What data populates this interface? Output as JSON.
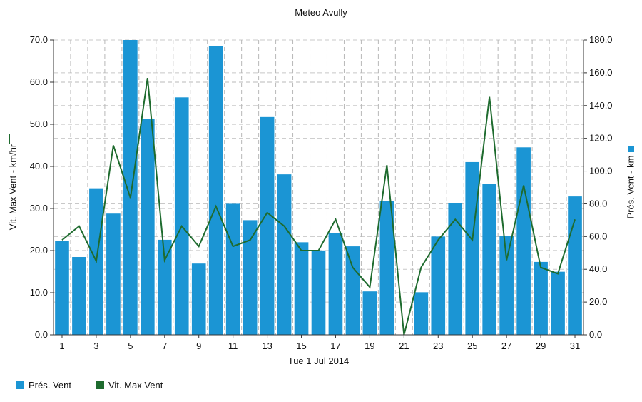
{
  "chart_data": {
    "type": "bar",
    "title": "Meteo  Avully",
    "xlabel": "Tue 1 Jul 2014",
    "ylabel_left": "Vit. Max Vent - km/hr",
    "ylabel_right": "Prés. Vent - km",
    "x": [
      1,
      2,
      3,
      4,
      5,
      6,
      7,
      8,
      9,
      10,
      11,
      12,
      13,
      14,
      15,
      16,
      17,
      18,
      19,
      20,
      21,
      22,
      23,
      24,
      25,
      26,
      27,
      28,
      29,
      30,
      31
    ],
    "x_tick_labels": [
      "1",
      "3",
      "5",
      "7",
      "9",
      "11",
      "13",
      "15",
      "17",
      "19",
      "21",
      "23",
      "25",
      "27",
      "29",
      "31"
    ],
    "ylim_left": [
      0,
      70
    ],
    "yticks_left": [
      "0.0",
      "10.0",
      "20.0",
      "30.0",
      "40.0",
      "50.0",
      "60.0",
      "70.0"
    ],
    "ylim_right": [
      0,
      180
    ],
    "yticks_right": [
      "0.0",
      "20.0",
      "40.0",
      "60.0",
      "80.0",
      "100.0",
      "120.0",
      "140.0",
      "160.0",
      "180.0"
    ],
    "grid": true,
    "legend_position": "bottom-left",
    "series": [
      {
        "name": "Prés. Vent",
        "type": "bar",
        "axis": "right",
        "color": "#1b95d4",
        "values": [
          57.5,
          47.5,
          89.5,
          74,
          180,
          132,
          58,
          145,
          43.5,
          176.5,
          80,
          70,
          133,
          98,
          56.5,
          51.5,
          62,
          54,
          26.5,
          81.5,
          0,
          26,
          60,
          80.5,
          105.5,
          92,
          60.5,
          114.5,
          44.5,
          38.5,
          84.5
        ]
      },
      {
        "name": "Vit. Max Vent",
        "type": "line",
        "axis": "left",
        "color": "#1e6b2e",
        "values": [
          22.5,
          25.8,
          17.5,
          45,
          32.5,
          61,
          17.7,
          25.8,
          21,
          30.5,
          21,
          22.5,
          29,
          25.8,
          20,
          20,
          27.4,
          16,
          11.3,
          40.3,
          0,
          16,
          22.5,
          27.4,
          22.5,
          56.5,
          17.7,
          35.5,
          16,
          14.5,
          27.4
        ]
      }
    ]
  }
}
